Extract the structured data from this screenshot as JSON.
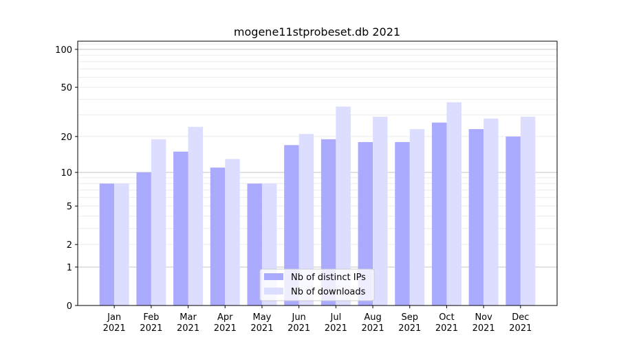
{
  "chart_data": {
    "type": "bar",
    "title": "mogene11stprobeset.db 2021",
    "xlabel": "",
    "ylabel": "",
    "y_scale": "log(1+y)",
    "ylim": [
      0,
      116
    ],
    "y_ticks": [
      0,
      1,
      2,
      5,
      10,
      20,
      50,
      100
    ],
    "grid": true,
    "legend_position": "bottom-center",
    "categories": [
      "Jan\n2021",
      "Feb\n2021",
      "Mar\n2021",
      "Apr\n2021",
      "May\n2021",
      "Jun\n2021",
      "Jul\n2021",
      "Aug\n2021",
      "Sep\n2021",
      "Oct\n2021",
      "Nov\n2021",
      "Dec\n2021"
    ],
    "series": [
      {
        "name": "Nb of distinct IPs",
        "color": "#aaaaff",
        "values": [
          8,
          10,
          15,
          11,
          8,
          17,
          19,
          18,
          18,
          26,
          23,
          20
        ]
      },
      {
        "name": "Nb of downloads",
        "color": "#ddddff",
        "values": [
          8,
          19,
          24,
          13,
          8,
          21,
          35,
          29,
          23,
          38,
          28,
          29
        ]
      }
    ]
  }
}
